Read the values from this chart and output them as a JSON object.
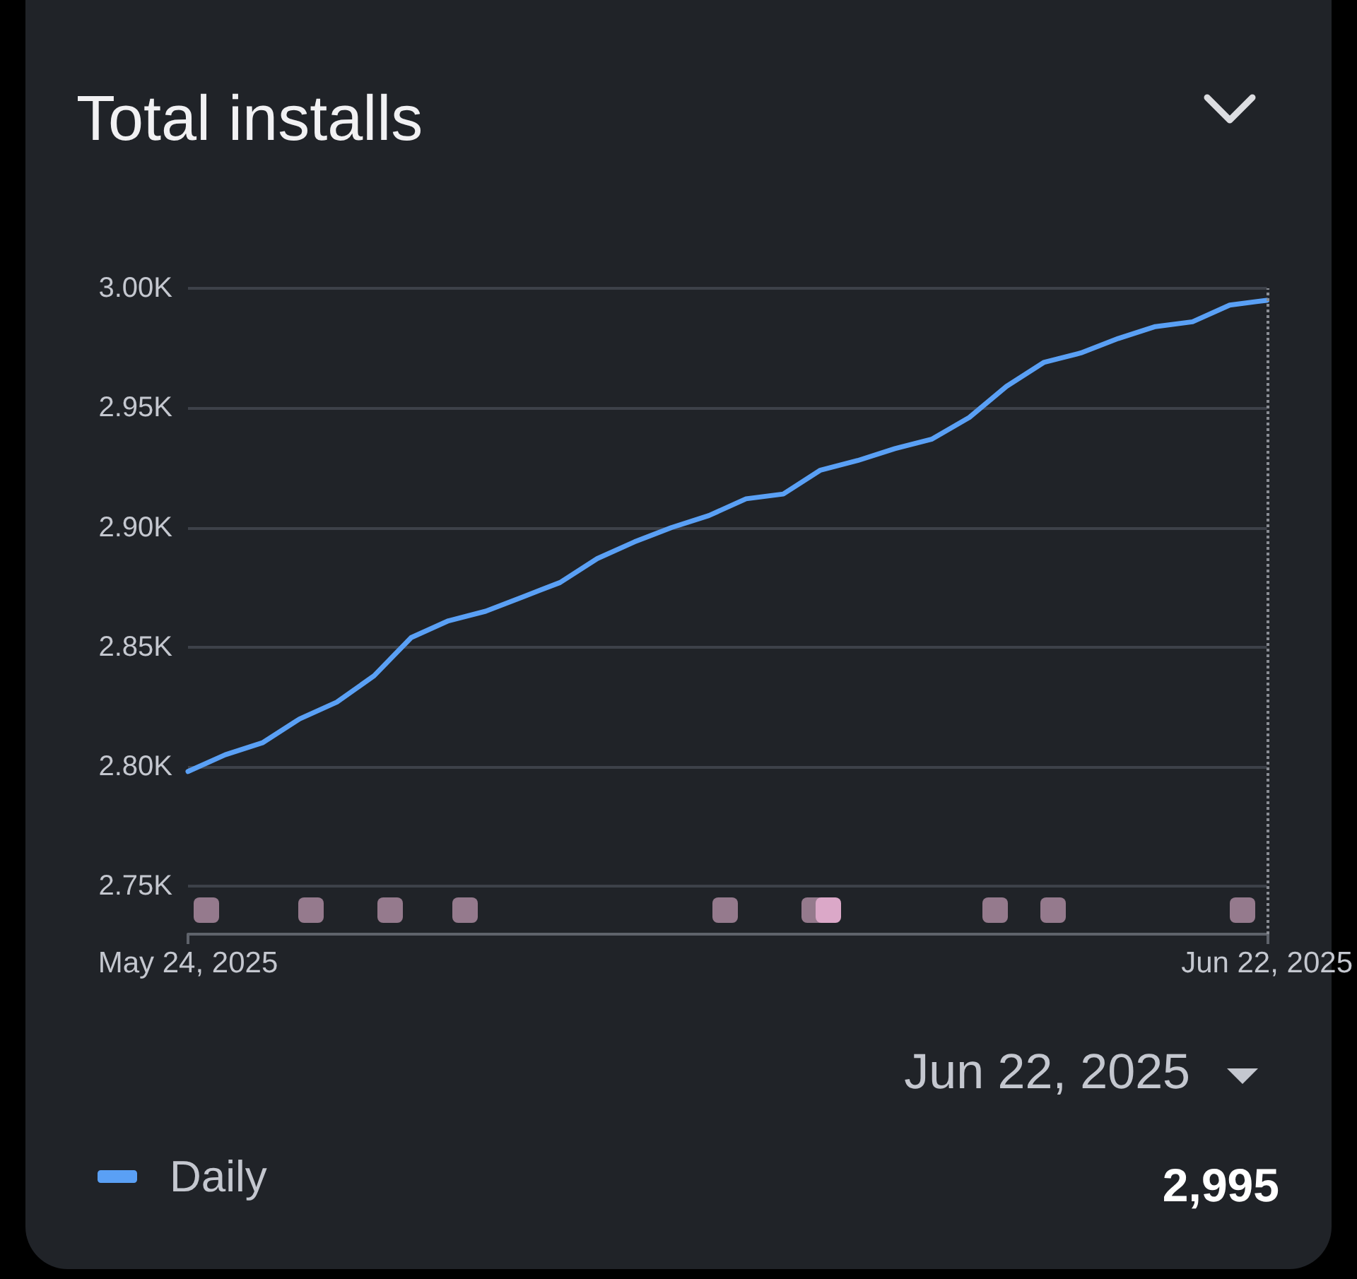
{
  "chart_data": {
    "type": "line",
    "title": "Total installs",
    "x": [
      "2025-05-24",
      "2025-05-25",
      "2025-05-26",
      "2025-05-27",
      "2025-05-28",
      "2025-05-29",
      "2025-05-30",
      "2025-05-31",
      "2025-06-01",
      "2025-06-02",
      "2025-06-03",
      "2025-06-04",
      "2025-06-05",
      "2025-06-06",
      "2025-06-07",
      "2025-06-08",
      "2025-06-09",
      "2025-06-10",
      "2025-06-11",
      "2025-06-12",
      "2025-06-13",
      "2025-06-14",
      "2025-06-15",
      "2025-06-16",
      "2025-06-17",
      "2025-06-18",
      "2025-06-19",
      "2025-06-20",
      "2025-06-21",
      "2025-06-22"
    ],
    "series": [
      {
        "name": "Daily",
        "color": "#5aa0f5",
        "values": [
          2798,
          2805,
          2810,
          2820,
          2827,
          2838,
          2854,
          2861,
          2865,
          2871,
          2877,
          2887,
          2894,
          2900,
          2905,
          2912,
          2914,
          2924,
          2928,
          2933,
          2937,
          2946,
          2959,
          2969,
          2973,
          2979,
          2984,
          2986,
          2993,
          2995
        ]
      }
    ],
    "xlim": [
      "2025-05-24",
      "2025-06-22"
    ],
    "xticks": [
      {
        "value": "2025-05-24",
        "label": "May 24, 2025"
      },
      {
        "value": "2025-06-22",
        "label": "Jun 22, 2025"
      }
    ],
    "ylim": [
      2730,
      3000
    ],
    "yticks": [
      {
        "value": 2750,
        "label": "2.75K"
      },
      {
        "value": 2800,
        "label": "2.80K"
      },
      {
        "value": 2850,
        "label": "2.85K"
      },
      {
        "value": 2900,
        "label": "2.90K"
      },
      {
        "value": 2950,
        "label": "2.95K"
      },
      {
        "value": 3000,
        "label": "3.00K"
      }
    ],
    "grid": "y",
    "legend": "bottom left",
    "marker": "none",
    "line_style": "solid",
    "ref_lines": [
      {
        "axis": "x",
        "value": "2025-06-22",
        "color": "#8a8d94",
        "line_style": "dotted"
      }
    ],
    "annotations": [
      "Jun 22, 2025",
      "2,995"
    ]
  }
}
